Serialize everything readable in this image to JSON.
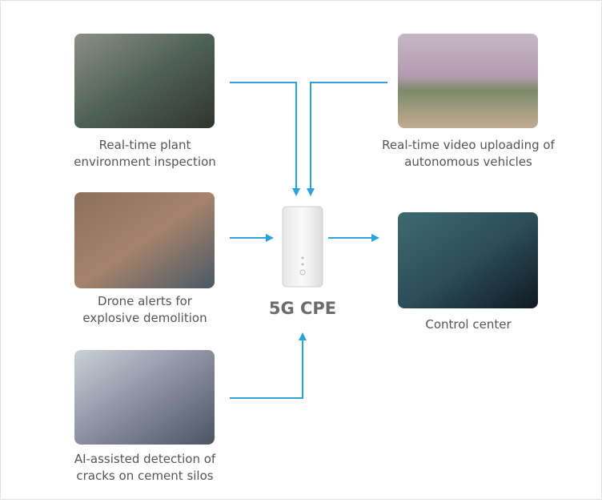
{
  "nodes": [
    {
      "label": [
        "Real-time plant",
        "environment inspection"
      ]
    },
    {
      "label": [
        "Real-time video uploading of",
        "autonomous vehicles"
      ]
    },
    {
      "label": [
        "Drone alerts for",
        "explosive demolition"
      ]
    },
    {
      "label": [
        "Control center"
      ]
    },
    {
      "label": [
        "AI-assisted detection of",
        "cracks on cement silos"
      ]
    }
  ],
  "hub": {
    "label": "5G CPE"
  }
}
